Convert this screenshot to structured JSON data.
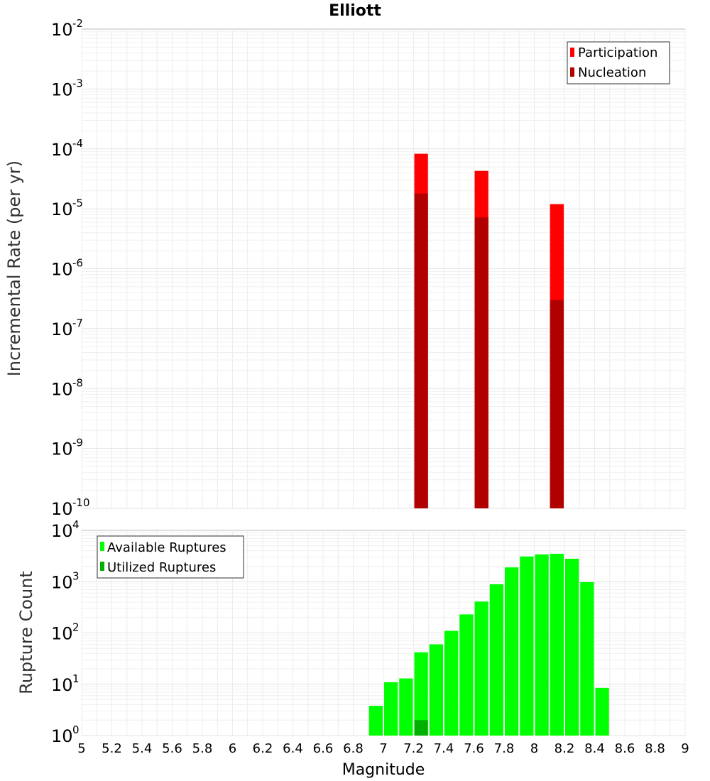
{
  "chart_data": [
    {
      "type": "bar",
      "title": "Elliott",
      "xlabel": "Magnitude",
      "ylabel": "Incremental Rate (per yr)",
      "yscale": "log",
      "xlim": [
        5,
        9
      ],
      "ylim_exponents": [
        -10,
        -2
      ],
      "bin_width": 0.1,
      "legend_position": "top-right",
      "series": [
        {
          "name": "Participation",
          "color": "#ff0000",
          "x": [
            7.25,
            7.65,
            8.15
          ],
          "values": [
            8.3e-05,
            4.3e-05,
            1.2e-05
          ]
        },
        {
          "name": "Nucleation",
          "color": "#b10000",
          "x": [
            7.25,
            7.65,
            8.15
          ],
          "values": [
            1.8e-05,
            7.2e-06,
            3e-07
          ]
        }
      ],
      "y_ticks": [
        {
          "base": "10",
          "exp": "-10"
        },
        {
          "base": "10",
          "exp": "-9"
        },
        {
          "base": "10",
          "exp": "-8"
        },
        {
          "base": "10",
          "exp": "-7"
        },
        {
          "base": "10",
          "exp": "-6"
        },
        {
          "base": "10",
          "exp": "-5"
        },
        {
          "base": "10",
          "exp": "-4"
        },
        {
          "base": "10",
          "exp": "-3"
        },
        {
          "base": "10",
          "exp": "-2"
        }
      ]
    },
    {
      "type": "bar",
      "title": "",
      "xlabel": "Magnitude",
      "ylabel": "Rupture Count",
      "yscale": "log",
      "xlim": [
        5,
        9
      ],
      "ylim_exponents": [
        0,
        4
      ],
      "bin_width": 0.1,
      "legend_position": "top-left",
      "series": [
        {
          "name": "Available Ruptures",
          "color": "#00ff00",
          "x": [
            6.95,
            7.05,
            7.15,
            7.25,
            7.35,
            7.45,
            7.55,
            7.65,
            7.75,
            7.85,
            7.95,
            8.05,
            8.15,
            8.25,
            8.35,
            8.45
          ],
          "values": [
            3.8,
            11,
            13,
            42,
            60,
            110,
            230,
            410,
            890,
            1900,
            3100,
            3400,
            3500,
            2800,
            980,
            8.5
          ]
        },
        {
          "name": "Utilized Ruptures",
          "color": "#00b000",
          "x": [
            7.25,
            7.65,
            8.15
          ],
          "values": [
            2,
            1,
            1
          ]
        }
      ],
      "y_ticks": [
        {
          "base": "10",
          "exp": "0"
        },
        {
          "base": "10",
          "exp": "1"
        },
        {
          "base": "10",
          "exp": "2"
        },
        {
          "base": "10",
          "exp": "3"
        },
        {
          "base": "10",
          "exp": "4"
        }
      ],
      "x_ticks": [
        "5",
        "5.2",
        "5.4",
        "5.6",
        "5.8",
        "6",
        "6.2",
        "6.4",
        "6.6",
        "6.8",
        "7",
        "7.2",
        "7.4",
        "7.6",
        "7.8",
        "8",
        "8.2",
        "8.4",
        "8.6",
        "8.8",
        "9"
      ]
    }
  ]
}
